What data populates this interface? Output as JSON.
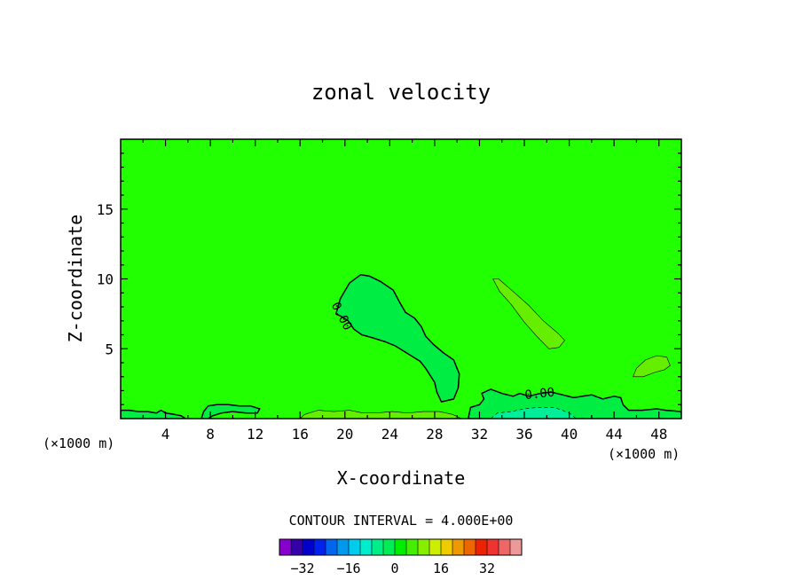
{
  "chart_data": {
    "type": "heatmap",
    "title": "zonal velocity",
    "xlabel": "X-coordinate",
    "ylabel": "Z-coordinate",
    "x_unit": "(×1000 m)",
    "x_unit_right": "(×1000 m)",
    "xlim": [
      0,
      50
    ],
    "ylim": [
      0,
      20
    ],
    "x_ticks": [
      4,
      8,
      12,
      16,
      20,
      24,
      28,
      32,
      36,
      40,
      44,
      48
    ],
    "y_ticks": [
      5,
      10,
      15
    ],
    "background_color": "#22ff00",
    "contour_interval_text": "CONTOUR INTERVAL = 4.000E+00",
    "contour_interval": 4,
    "contour_labels": [
      {
        "text": "0.00",
        "x": 19.4,
        "z": 7.2,
        "rotation": 62
      },
      {
        "text": "0.00",
        "x": 37.4,
        "z": 1.5,
        "rotation": -6
      }
    ],
    "colorbar": {
      "colors": [
        "#8800cc",
        "#3300aa",
        "#0000cc",
        "#0022ee",
        "#0066ee",
        "#0099ee",
        "#00ccee",
        "#00eecc",
        "#00ee88",
        "#00ee55",
        "#00ee00",
        "#44ee00",
        "#88ee00",
        "#ccee00",
        "#eecc00",
        "#ee9900",
        "#ee6600",
        "#ee2200",
        "#ee3333",
        "#ee6666",
        "#ee9999"
      ],
      "tick_values": [
        -32,
        -16,
        0,
        16,
        32
      ],
      "tick_labels": [
        "−32",
        "−16",
        "0",
        "16",
        "32"
      ],
      "range": [
        -40,
        44
      ]
    },
    "regions": [
      {
        "name": "updraft-plume-region",
        "fill": "#00ee44",
        "stroke_width": 1.5,
        "points": [
          [
            19.2,
            7.5
          ],
          [
            19.6,
            8.6
          ],
          [
            20.4,
            9.7
          ],
          [
            21.4,
            10.3
          ],
          [
            22.2,
            10.2
          ],
          [
            23.2,
            9.8
          ],
          [
            24.3,
            9.2
          ],
          [
            24.9,
            8.3
          ],
          [
            25.4,
            7.6
          ],
          [
            26.2,
            7.2
          ],
          [
            26.8,
            6.6
          ],
          [
            27.2,
            5.9
          ],
          [
            27.9,
            5.3
          ],
          [
            28.8,
            4.7
          ],
          [
            29.7,
            4.2
          ],
          [
            30.2,
            3.2
          ],
          [
            30.1,
            2.2
          ],
          [
            29.7,
            1.4
          ],
          [
            28.6,
            1.2
          ],
          [
            28.2,
            1.9
          ],
          [
            28.0,
            2.6
          ],
          [
            27.2,
            3.6
          ],
          [
            26.7,
            4.1
          ],
          [
            25.9,
            4.5
          ],
          [
            25.3,
            4.8
          ],
          [
            24.5,
            5.2
          ],
          [
            23.6,
            5.5
          ],
          [
            22.4,
            5.8
          ],
          [
            21.5,
            6.0
          ],
          [
            20.8,
            6.4
          ],
          [
            20.3,
            7.0
          ],
          [
            19.7,
            7.3
          ]
        ]
      },
      {
        "name": "upper-right-lobe-region",
        "fill": "#66ee00",
        "stroke_width": 0.6,
        "points": [
          [
            33.2,
            10.0
          ],
          [
            33.7,
            10.0
          ],
          [
            35.0,
            9.1
          ],
          [
            36.4,
            8.1
          ],
          [
            37.7,
            7.0
          ],
          [
            39.0,
            6.1
          ],
          [
            39.6,
            5.6
          ],
          [
            39.1,
            5.1
          ],
          [
            38.2,
            5.0
          ],
          [
            37.1,
            5.9
          ],
          [
            36.0,
            6.9
          ],
          [
            34.8,
            8.2
          ],
          [
            33.8,
            9.1
          ]
        ]
      },
      {
        "name": "right-edge-lobe-region",
        "fill": "#66ee00",
        "stroke_width": 0.6,
        "points": [
          [
            45.7,
            3.0
          ],
          [
            46.0,
            3.6
          ],
          [
            46.8,
            4.2
          ],
          [
            47.8,
            4.5
          ],
          [
            48.7,
            4.4
          ],
          [
            49.0,
            3.8
          ],
          [
            48.5,
            3.5
          ],
          [
            47.6,
            3.3
          ],
          [
            46.6,
            3.0
          ]
        ]
      },
      {
        "name": "near-ground-right-region",
        "fill": "#00ee44",
        "stroke_width": 1.5,
        "points": [
          [
            31.0,
            0.0
          ],
          [
            31.2,
            0.8
          ],
          [
            32.0,
            1.0
          ],
          [
            32.4,
            1.4
          ],
          [
            32.2,
            1.8
          ],
          [
            33.0,
            2.1
          ],
          [
            34.0,
            1.8
          ],
          [
            35.0,
            1.6
          ],
          [
            35.6,
            1.8
          ],
          [
            36.4,
            1.6
          ],
          [
            37.4,
            1.8
          ],
          [
            38.4,
            1.9
          ],
          [
            39.4,
            1.7
          ],
          [
            40.4,
            1.5
          ],
          [
            41.2,
            1.6
          ],
          [
            42.0,
            1.7
          ],
          [
            43.0,
            1.4
          ],
          [
            44.0,
            1.6
          ],
          [
            44.6,
            1.5
          ],
          [
            44.8,
            1.0
          ],
          [
            45.3,
            0.6
          ],
          [
            46.5,
            0.6
          ],
          [
            47.8,
            0.7
          ],
          [
            48.6,
            0.6
          ],
          [
            50.0,
            0.5
          ],
          [
            50.0,
            0.0
          ]
        ]
      },
      {
        "name": "surface-strip-right-region",
        "fill": "#00ee99",
        "stroke_width": 0.6,
        "dashed": true,
        "points": [
          [
            33.0,
            0.0
          ],
          [
            33.6,
            0.4
          ],
          [
            34.8,
            0.5
          ],
          [
            36.0,
            0.7
          ],
          [
            37.2,
            0.8
          ],
          [
            38.6,
            0.8
          ],
          [
            39.4,
            0.6
          ],
          [
            40.2,
            0.3
          ],
          [
            40.6,
            0.0
          ]
        ]
      },
      {
        "name": "near-ground-left-region",
        "fill": "#00ee44",
        "stroke_width": 1.5,
        "points": [
          [
            0.0,
            0.0
          ],
          [
            0.0,
            0.6
          ],
          [
            0.8,
            0.6
          ],
          [
            1.6,
            0.5
          ],
          [
            2.4,
            0.5
          ],
          [
            3.2,
            0.4
          ],
          [
            3.6,
            0.6
          ],
          [
            4.0,
            0.4
          ],
          [
            4.8,
            0.3
          ],
          [
            5.4,
            0.2
          ],
          [
            5.8,
            0.0
          ]
        ]
      },
      {
        "name": "near-ground-mid-region",
        "fill": "#00ee44",
        "stroke_width": 1.5,
        "points": [
          [
            7.2,
            0.0
          ],
          [
            7.4,
            0.5
          ],
          [
            7.8,
            0.9
          ],
          [
            8.6,
            1.0
          ],
          [
            9.6,
            1.0
          ],
          [
            10.6,
            0.9
          ],
          [
            11.6,
            0.9
          ],
          [
            12.4,
            0.7
          ],
          [
            12.2,
            0.4
          ],
          [
            11.2,
            0.4
          ],
          [
            10.0,
            0.5
          ],
          [
            9.0,
            0.4
          ],
          [
            8.2,
            0.2
          ],
          [
            7.8,
            0.0
          ]
        ]
      },
      {
        "name": "surface-strip-mid-region",
        "fill": "#66ee00",
        "stroke_width": 0.6,
        "points": [
          [
            16.0,
            0.0
          ],
          [
            16.4,
            0.3
          ],
          [
            17.6,
            0.6
          ],
          [
            19.0,
            0.5
          ],
          [
            20.4,
            0.6
          ],
          [
            21.6,
            0.4
          ],
          [
            22.8,
            0.4
          ],
          [
            24.2,
            0.5
          ],
          [
            25.6,
            0.4
          ],
          [
            27.0,
            0.5
          ],
          [
            28.4,
            0.5
          ],
          [
            29.6,
            0.3
          ],
          [
            30.4,
            0.0
          ]
        ]
      }
    ]
  }
}
